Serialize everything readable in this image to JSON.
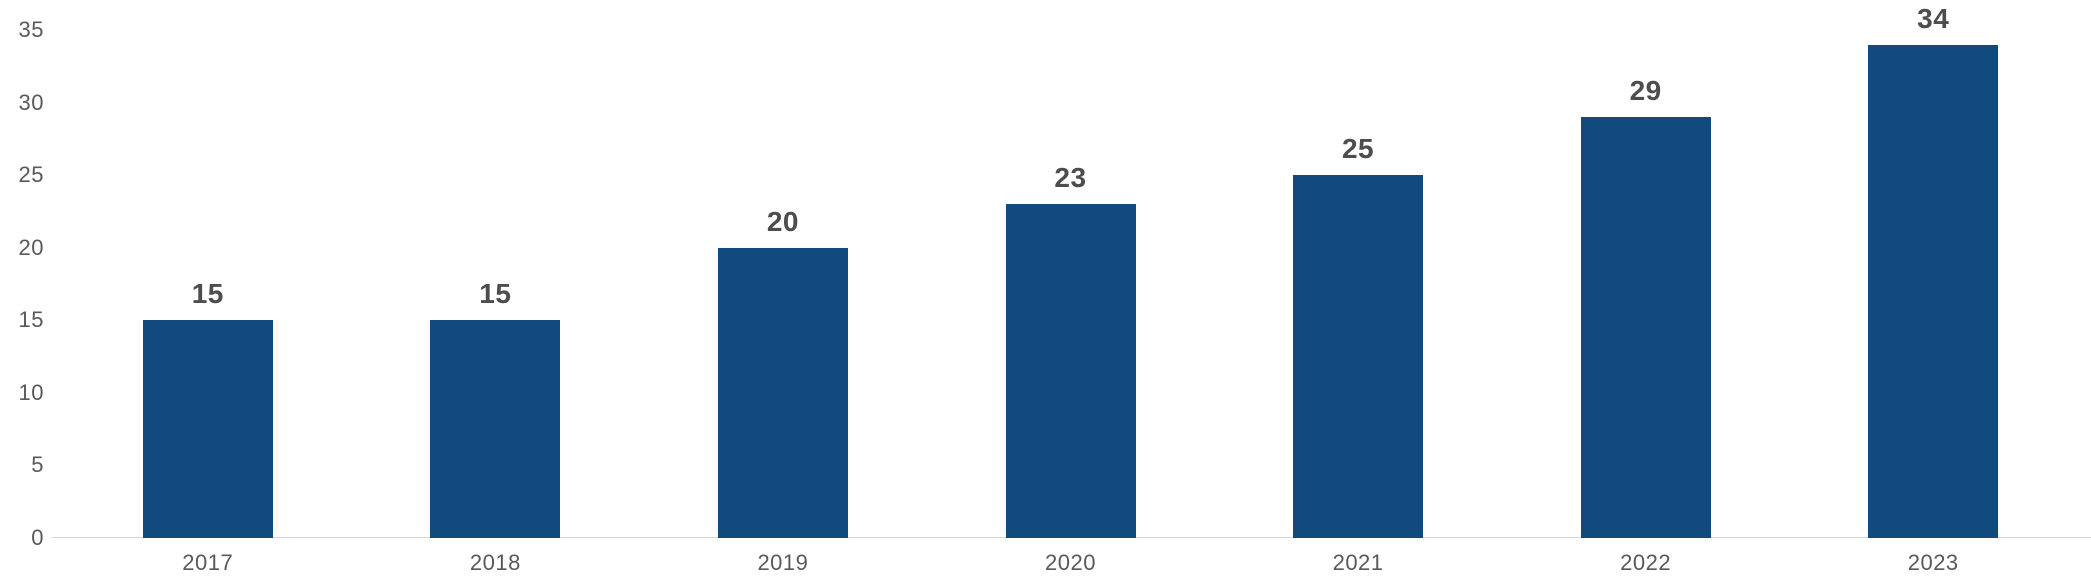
{
  "chart_data": {
    "type": "bar",
    "categories": [
      "2017",
      "2018",
      "2019",
      "2020",
      "2021",
      "2022",
      "2023"
    ],
    "values": [
      15,
      15,
      20,
      23,
      25,
      29,
      34
    ],
    "title": "",
    "xlabel": "",
    "ylabel": "",
    "ylim": [
      0,
      35
    ],
    "yticks": [
      0,
      5,
      10,
      15,
      20,
      25,
      30,
      35
    ],
    "grid": false,
    "legend": false,
    "colors": {
      "bar": "#114A7E",
      "value_label": "#4D4D4D",
      "tick_label": "#595959",
      "axis_line": "#D6D6D6"
    }
  }
}
